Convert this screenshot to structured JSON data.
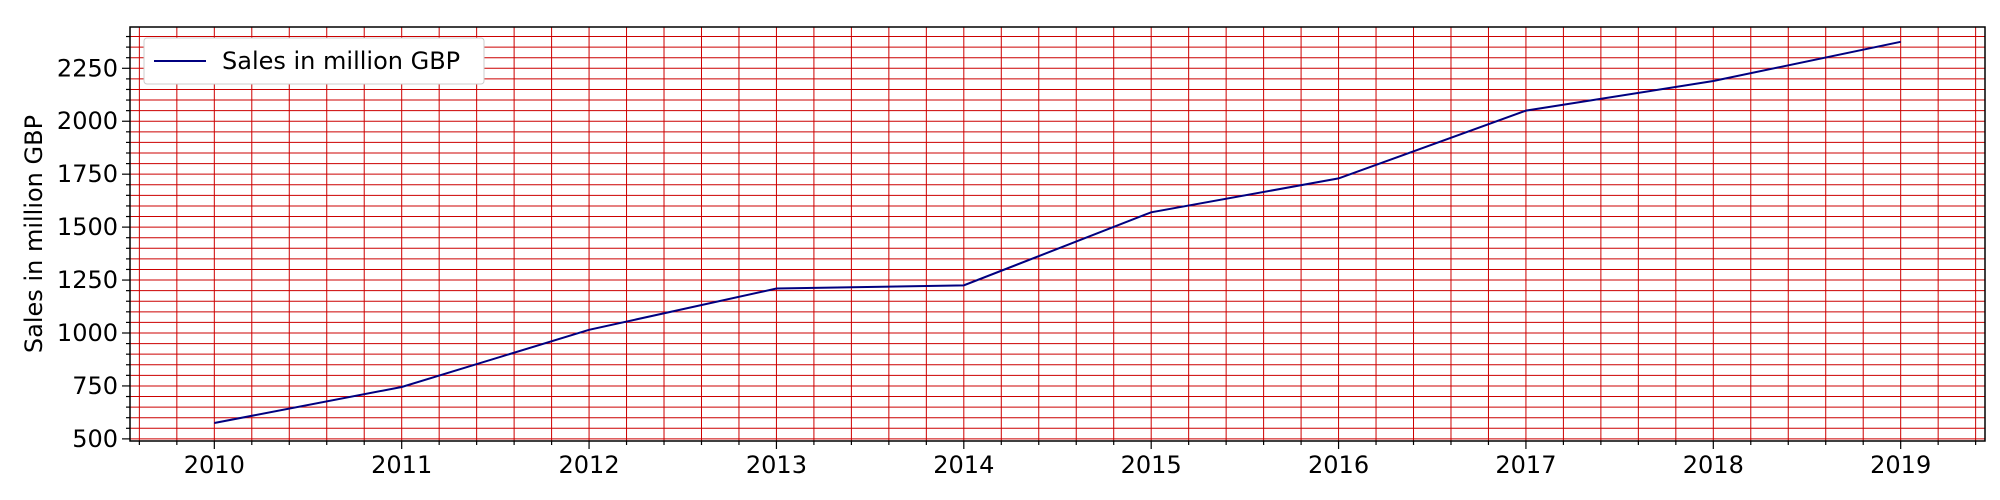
{
  "chart_data": {
    "type": "line",
    "title": "",
    "xlabel": "",
    "ylabel": "Sales in million GBP",
    "x": [
      2010,
      2011,
      2012,
      2013,
      2014,
      2015,
      2016,
      2017,
      2018,
      2019
    ],
    "series": [
      {
        "name": "Sales in million GBP",
        "values": [
          575,
          745,
          1015,
          1210,
          1225,
          1570,
          1730,
          2050,
          2190,
          2375
        ],
        "color": "#000080"
      }
    ],
    "xlim": [
      2009.55,
      2019.45
    ],
    "ylim": [
      490,
      2445
    ],
    "xticks": [
      2010,
      2011,
      2012,
      2013,
      2014,
      2015,
      2016,
      2017,
      2018,
      2019
    ],
    "yticks": [
      500,
      750,
      1000,
      1250,
      1500,
      1750,
      2000,
      2250
    ],
    "grid": true,
    "minor_grid": true,
    "grid_color": "#cc0000",
    "legend_position": "upper-left"
  }
}
